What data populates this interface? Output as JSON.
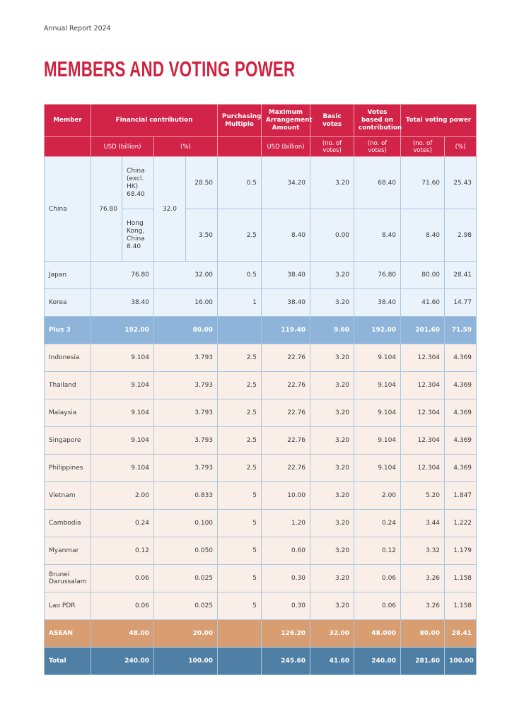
{
  "header": {
    "label": "Annual Report 2024",
    "title": "MEMBERS AND VOTING POWER"
  },
  "table": {
    "columns": [
      "Member",
      "Financial contribution",
      "Purchasing Multiple",
      "Maximum Arrangement Amount",
      "Basic votes",
      "Votes based on contribution",
      "Total voting power"
    ],
    "units": [
      "USD (billion)",
      "(%)",
      "USD (billion)",
      "(no. of votes)",
      "(no. of votes)",
      "(no. of votes)",
      "(%)"
    ],
    "china": {
      "member": "China",
      "usd_total": "76.80",
      "pct_total": "32.0",
      "parts": [
        {
          "name": "China (excl. HK)",
          "usd": "68.40",
          "values": [
            "28.50",
            "0.5",
            "34.20",
            "3.20",
            "68.40",
            "71.60",
            "25.43"
          ]
        },
        {
          "name": "Hong Kong, China",
          "usd": "8.40",
          "values": [
            "3.50",
            "2.5",
            "8.40",
            "0.00",
            "8.40",
            "8.40",
            "2.98"
          ]
        }
      ]
    },
    "plus3_rows": [
      [
        "Japan",
        "76.80",
        "32.00",
        "0.5",
        "38.40",
        "3.20",
        "76.80",
        "80.00",
        "28.41"
      ],
      [
        "Korea",
        "38.40",
        "16.00",
        "1",
        "38.40",
        "3.20",
        "38.40",
        "41.60",
        "14.77"
      ]
    ],
    "plus3_total": {
      "member": "Plus 3",
      "values": [
        "192.00",
        "80.00",
        "119.40",
        "9.60",
        "192.00",
        "201.60",
        "71.59"
      ]
    },
    "asean_rows": [
      [
        "Indonesia",
        "9.104",
        "3.793",
        "2.5",
        "22.76",
        "3.20",
        "9.104",
        "12.304",
        "4.369"
      ],
      [
        "Thailand",
        "9.104",
        "3.793",
        "2.5",
        "22.76",
        "3.20",
        "9.104",
        "12.304",
        "4.369"
      ],
      [
        "Malaysia",
        "9.104",
        "3.793",
        "2.5",
        "22.76",
        "3.20",
        "9.104",
        "12.304",
        "4.369"
      ],
      [
        "Singapore",
        "9.104",
        "3.793",
        "2.5",
        "22.76",
        "3.20",
        "9.104",
        "12.304",
        "4.369"
      ],
      [
        "Philippines",
        "9.104",
        "3.793",
        "2.5",
        "22.76",
        "3.20",
        "9.104",
        "12.304",
        "4.369"
      ],
      [
        "Vietnam",
        "2.00",
        "0.833",
        "5",
        "10.00",
        "3.20",
        "2.00",
        "5.20",
        "1.847"
      ],
      [
        "Cambodia",
        "0.24",
        "0.100",
        "5",
        "1.20",
        "3.20",
        "0.24",
        "3.44",
        "1.222"
      ],
      [
        "Myanmar",
        "0.12",
        "0.050",
        "5",
        "0.60",
        "3.20",
        "0.12",
        "3.32",
        "1.179"
      ],
      [
        "Brunei Darussalam",
        "0.06",
        "0.025",
        "5",
        "0.30",
        "3.20",
        "0.06",
        "3.26",
        "1.158"
      ],
      [
        "Lao PDR",
        "0.06",
        "0.025",
        "5",
        "0.30",
        "3.20",
        "0.06",
        "3.26",
        "1.158"
      ]
    ],
    "asean_total": {
      "member": "ASEAN",
      "values": [
        "48.00",
        "20.00",
        "126.20",
        "32.00",
        "48.000",
        "80.00",
        "28.41"
      ]
    },
    "grand_total": {
      "member": "Total",
      "values": [
        "240.00",
        "100.00",
        "245.60",
        "41.60",
        "240.00",
        "281.60",
        "100.00"
      ]
    }
  }
}
